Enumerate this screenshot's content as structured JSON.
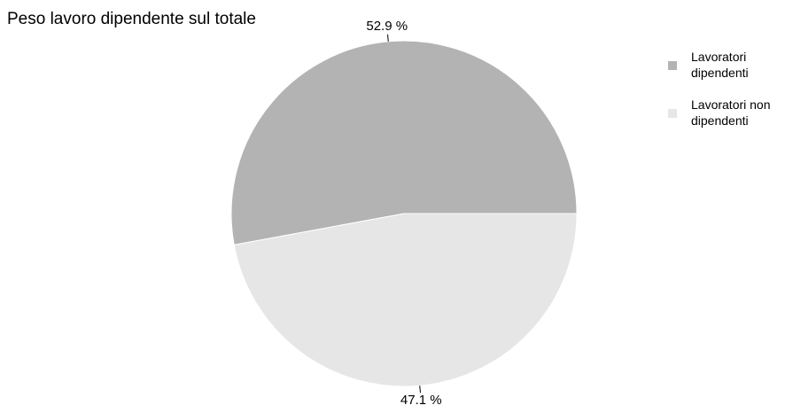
{
  "chart_data": {
    "type": "pie",
    "title": "Peso lavoro dipendente sul totale",
    "categories": [
      "Lavoratori dipendenti",
      "Lavoratori non dipendenti"
    ],
    "values": [
      52.9,
      47.1
    ],
    "value_labels": [
      "52.9 %",
      "47.1 %"
    ],
    "colors": [
      "#b3b3b3",
      "#e6e6e6"
    ],
    "legend": "right"
  }
}
